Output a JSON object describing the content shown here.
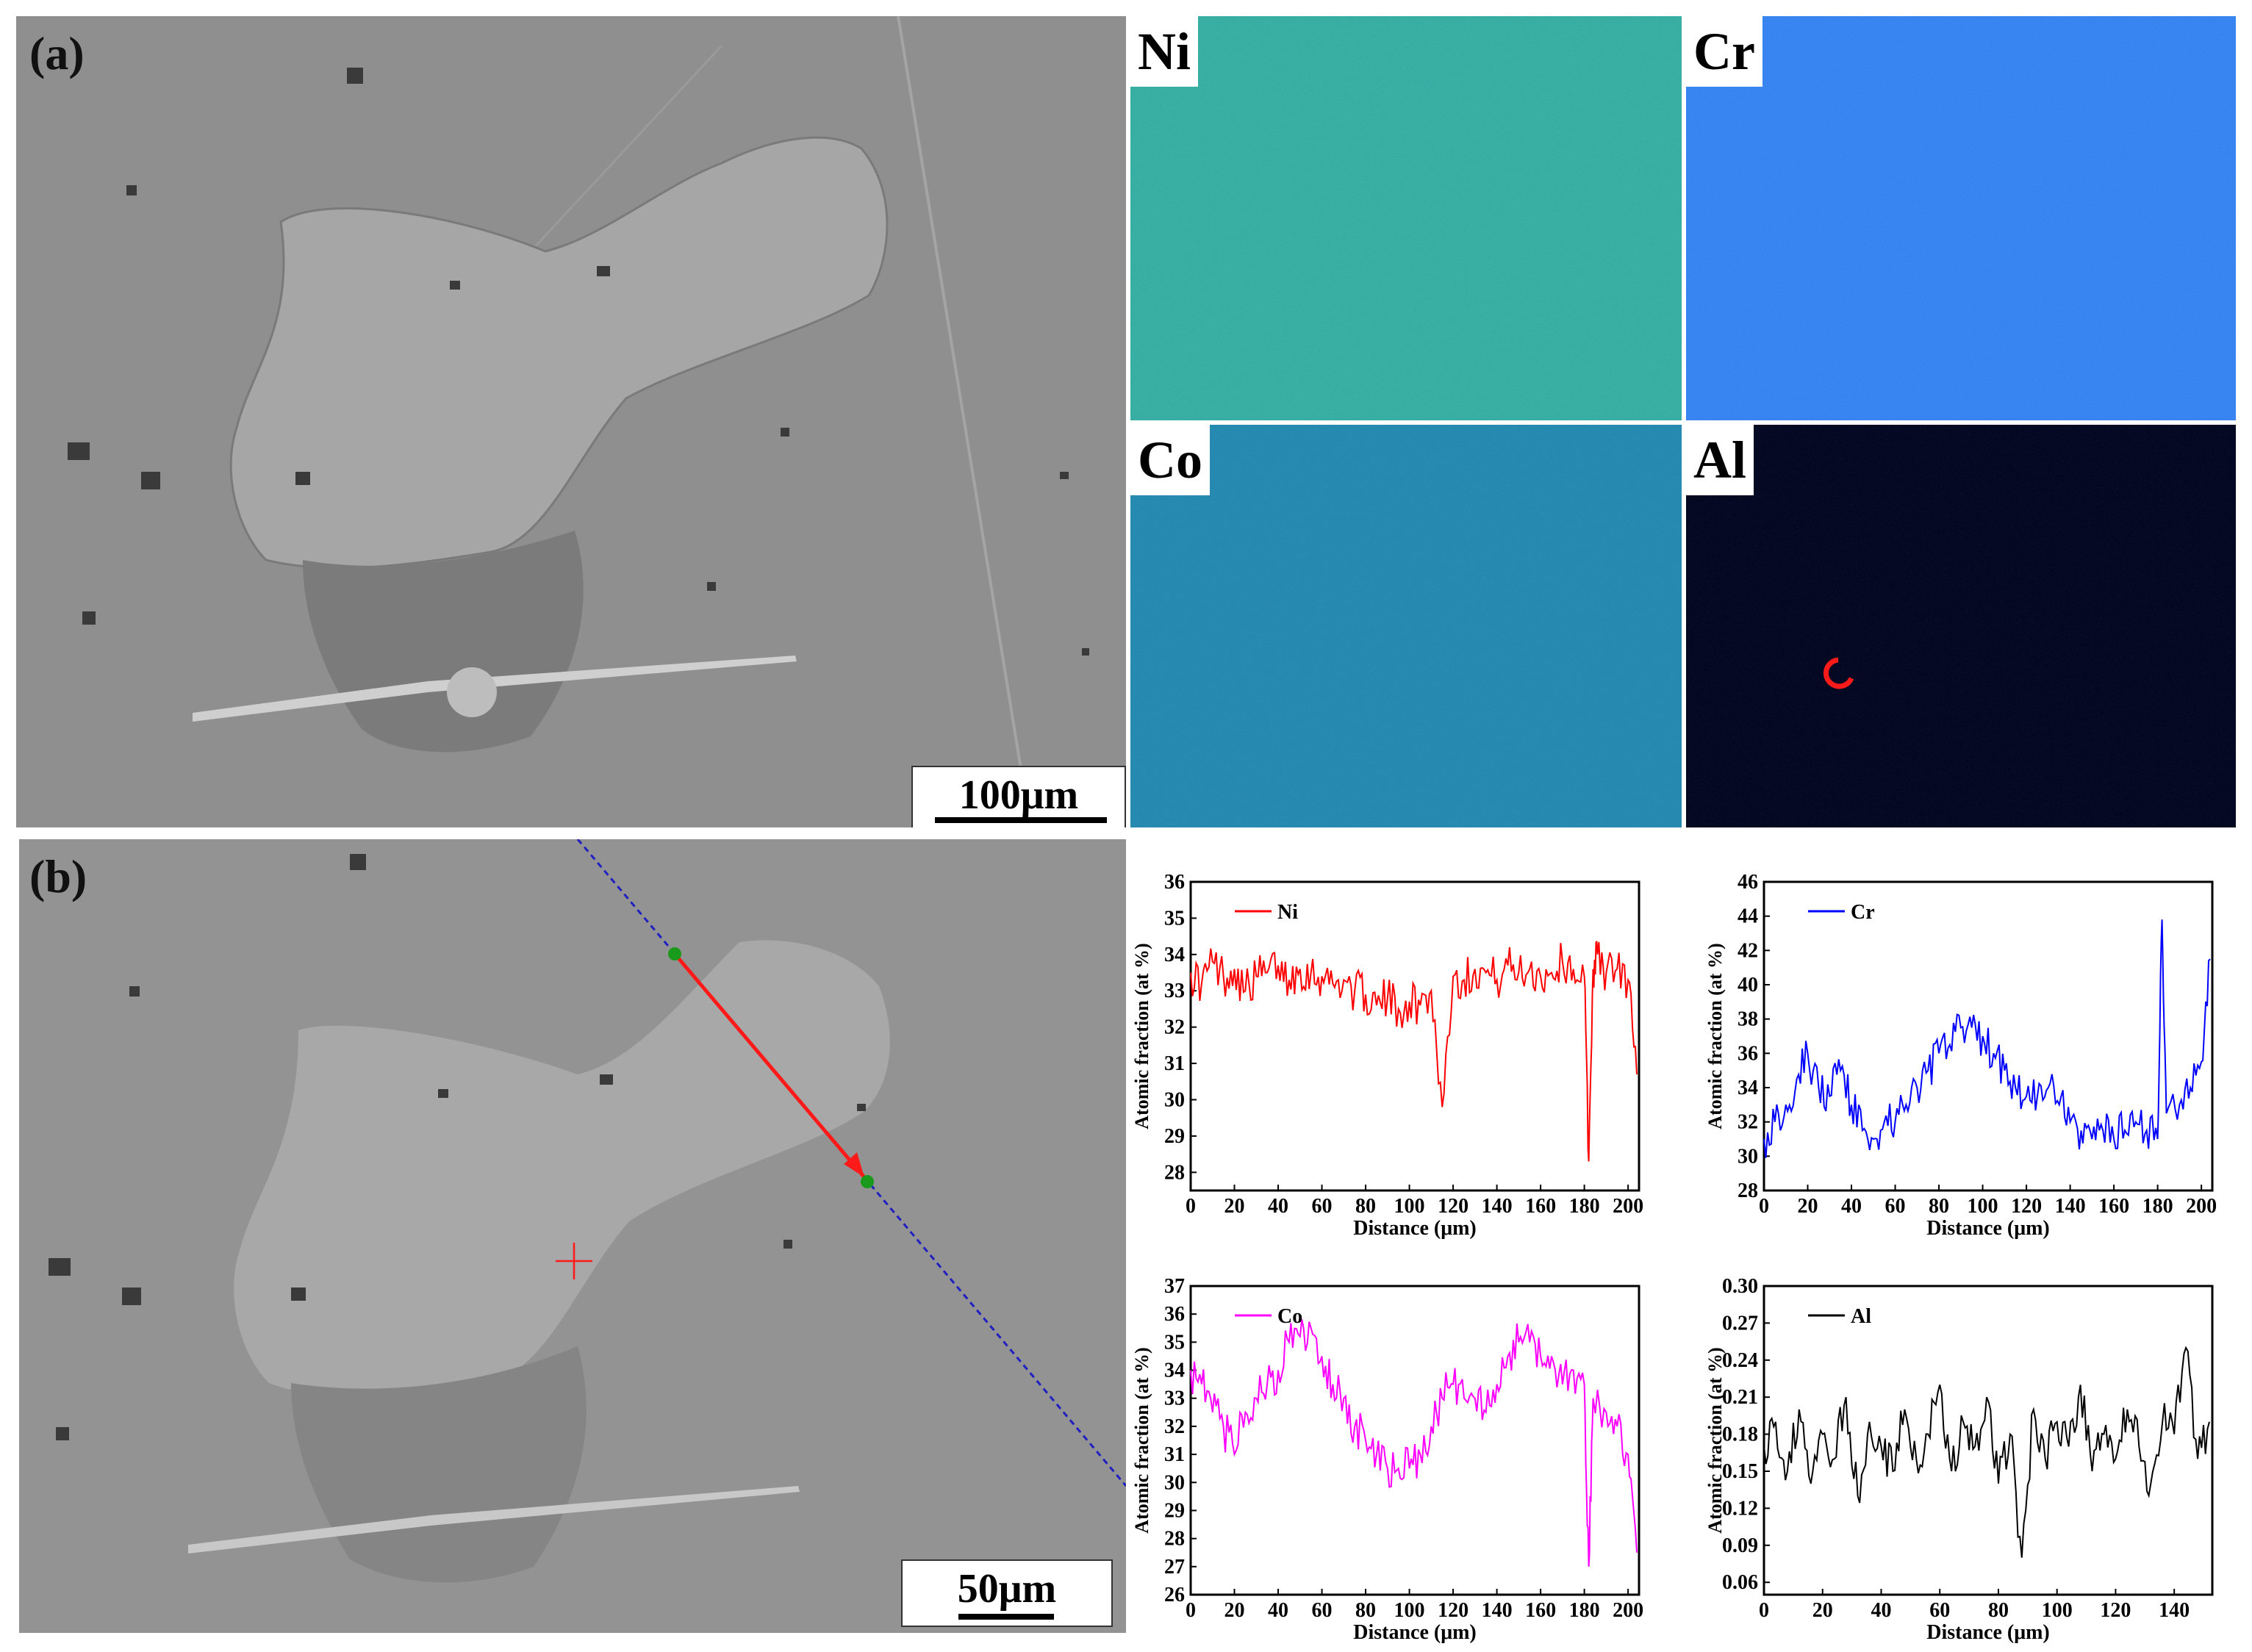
{
  "panels": {
    "a": {
      "label": "(a)",
      "scale_bar": "100μm"
    },
    "b": {
      "label": "(b)",
      "scale_bar": "50μm"
    }
  },
  "maps": [
    {
      "label": "Ni",
      "color": "#2aa8a0"
    },
    {
      "label": "Cr",
      "color": "#2e7cf0"
    },
    {
      "label": "Co",
      "color": "#1f86b0"
    },
    {
      "label": "Al",
      "color": "#040a24"
    }
  ],
  "chart_data": [
    {
      "type": "line",
      "legend": "Ni",
      "color": "#ff0000",
      "xlabel": "Distance (μm)",
      "ylabel": "Atomic fraction (at %)",
      "xlim": [
        0,
        205
      ],
      "ylim": [
        27.5,
        36
      ],
      "xticks": [
        0,
        20,
        40,
        60,
        80,
        100,
        120,
        140,
        160,
        180,
        200
      ],
      "yticks": [
        28,
        29,
        30,
        31,
        32,
        33,
        34,
        35,
        36
      ],
      "x": [
        0,
        5,
        10,
        15,
        20,
        25,
        30,
        35,
        40,
        45,
        50,
        55,
        60,
        65,
        70,
        75,
        80,
        85,
        90,
        95,
        100,
        105,
        110,
        115,
        120,
        125,
        130,
        135,
        140,
        145,
        150,
        155,
        160,
        165,
        170,
        175,
        180,
        182,
        184,
        186,
        190,
        195,
        200,
        204
      ],
      "y": [
        33.5,
        33.2,
        33.8,
        33.4,
        33.6,
        33.0,
        33.4,
        33.5,
        33.7,
        33.3,
        33.6,
        33.5,
        33.4,
        33.2,
        33.3,
        33.0,
        32.9,
        32.6,
        32.8,
        32.5,
        32.7,
        32.6,
        33.0,
        29.8,
        33.4,
        33.3,
        33.6,
        33.5,
        33.3,
        33.7,
        33.5,
        33.6,
        33.4,
        33.5,
        33.8,
        33.6,
        33.4,
        28.3,
        33.6,
        34.0,
        33.5,
        33.6,
        33.3,
        30.7
      ],
      "legend_pos": "top-left"
    },
    {
      "type": "line",
      "legend": "Cr",
      "color": "#0000ff",
      "xlabel": "Distance (μm)",
      "ylabel": "Atomic fraction (at %)",
      "xlim": [
        0,
        205
      ],
      "ylim": [
        28,
        46
      ],
      "xticks": [
        0,
        20,
        40,
        60,
        80,
        100,
        120,
        140,
        160,
        180,
        200
      ],
      "yticks": [
        28,
        30,
        32,
        34,
        36,
        38,
        40,
        42,
        44,
        46
      ],
      "x": [
        0,
        5,
        10,
        15,
        20,
        25,
        30,
        35,
        40,
        45,
        50,
        55,
        60,
        65,
        70,
        75,
        80,
        85,
        90,
        95,
        100,
        105,
        110,
        115,
        120,
        125,
        130,
        135,
        140,
        145,
        150,
        155,
        160,
        165,
        170,
        175,
        180,
        182,
        184,
        190,
        195,
        200,
        204
      ],
      "y": [
        31.0,
        32.0,
        33.0,
        34.5,
        36.0,
        34.0,
        33.5,
        35.0,
        33.0,
        31.5,
        31.0,
        32.0,
        32.0,
        33.0,
        34.0,
        35.0,
        36.0,
        36.5,
        37.5,
        37.5,
        37.0,
        36.0,
        35.0,
        34.0,
        33.5,
        33.5,
        34.0,
        33.0,
        32.0,
        31.5,
        31.0,
        31.5,
        31.0,
        31.5,
        32.0,
        31.5,
        31.0,
        43.8,
        32.5,
        33.0,
        34.0,
        35.5,
        41.5
      ],
      "legend_pos": "top-left"
    },
    {
      "type": "line",
      "legend": "Co",
      "color": "#ff00ff",
      "xlabel": "Distance (μm)",
      "ylabel": "Atomic fraction (at %)",
      "xlim": [
        0,
        205
      ],
      "ylim": [
        26,
        37
      ],
      "xticks": [
        0,
        20,
        40,
        60,
        80,
        100,
        120,
        140,
        160,
        180,
        200
      ],
      "yticks": [
        26,
        27,
        28,
        29,
        30,
        31,
        32,
        33,
        34,
        35,
        36,
        37
      ],
      "x": [
        0,
        5,
        10,
        15,
        20,
        25,
        30,
        35,
        40,
        45,
        50,
        55,
        60,
        65,
        70,
        75,
        80,
        85,
        90,
        95,
        100,
        105,
        110,
        115,
        120,
        125,
        130,
        135,
        140,
        145,
        150,
        155,
        160,
        165,
        170,
        175,
        180,
        182,
        184,
        190,
        195,
        200,
        204
      ],
      "y": [
        34.0,
        33.5,
        32.5,
        32.0,
        31.0,
        32.5,
        33.0,
        33.5,
        34.0,
        35.0,
        35.2,
        35.5,
        34.5,
        33.5,
        33.0,
        32.0,
        31.5,
        31.0,
        30.5,
        30.5,
        30.5,
        31.0,
        32.0,
        33.0,
        33.5,
        33.0,
        33.0,
        32.5,
        33.5,
        34.5,
        35.0,
        35.0,
        34.5,
        34.5,
        33.5,
        34.0,
        33.5,
        27.0,
        33.0,
        32.5,
        32.0,
        31.0,
        27.5
      ],
      "legend_pos": "top-left"
    },
    {
      "type": "line",
      "legend": "Al",
      "color": "#000000",
      "xlabel": "Distance (μm)",
      "ylabel": "Atomic fraction (at %)",
      "xlim": [
        0,
        153
      ],
      "ylim": [
        0.05,
        0.3
      ],
      "xticks": [
        0,
        20,
        40,
        60,
        80,
        100,
        120,
        140
      ],
      "yticks": [
        0.06,
        0.09,
        0.12,
        0.15,
        0.18,
        0.21,
        0.24,
        0.27,
        0.3
      ],
      "x": [
        0,
        4,
        8,
        12,
        16,
        20,
        24,
        28,
        32,
        36,
        40,
        44,
        48,
        52,
        56,
        60,
        64,
        68,
        72,
        76,
        80,
        84,
        88,
        92,
        96,
        100,
        104,
        108,
        112,
        116,
        120,
        124,
        128,
        132,
        136,
        140,
        144,
        148,
        152
      ],
      "y": [
        0.17,
        0.19,
        0.15,
        0.2,
        0.14,
        0.18,
        0.16,
        0.21,
        0.13,
        0.19,
        0.17,
        0.15,
        0.2,
        0.16,
        0.18,
        0.22,
        0.15,
        0.19,
        0.17,
        0.21,
        0.14,
        0.18,
        0.08,
        0.2,
        0.16,
        0.19,
        0.17,
        0.22,
        0.15,
        0.18,
        0.16,
        0.2,
        0.17,
        0.14,
        0.19,
        0.18,
        0.25,
        0.16,
        0.19
      ],
      "legend_pos": "top-left"
    }
  ]
}
